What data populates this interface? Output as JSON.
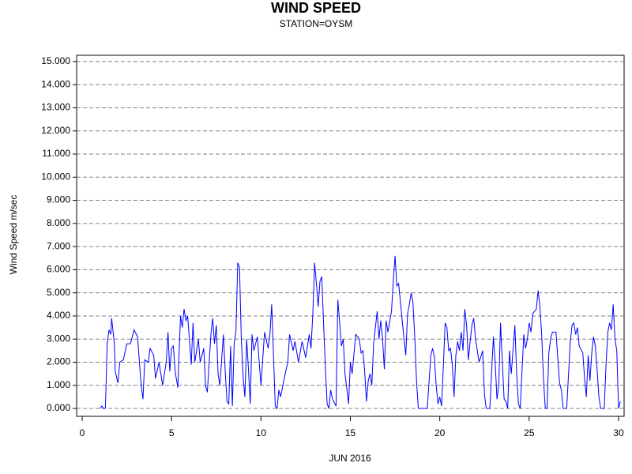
{
  "chart_data": {
    "type": "line",
    "title": "WIND SPEED",
    "subtitle": "STATION=OYSM",
    "x_label": "JUN 2016",
    "y_label": "Wind Speed m/sec",
    "color": "#0000ff",
    "grid": true,
    "xlim": [
      -0.31,
      30.31
    ],
    "ylim": [
      -0.34,
      15.27
    ],
    "xticks": [
      0,
      5,
      10,
      15,
      20,
      25,
      30
    ],
    "yticks": [
      {
        "value": 0,
        "label": "0.000"
      },
      {
        "value": 1,
        "label": "1.000"
      },
      {
        "value": 2,
        "label": "2.000"
      },
      {
        "value": 3,
        "label": "3.000"
      },
      {
        "value": 4,
        "label": "4.000"
      },
      {
        "value": 5,
        "label": "5.000"
      },
      {
        "value": 6,
        "label": "6.000"
      },
      {
        "value": 7,
        "label": "7.000"
      },
      {
        "value": 8,
        "label": "8.000"
      },
      {
        "value": 9,
        "label": "9.000"
      },
      {
        "value": 10,
        "label": "10.000"
      },
      {
        "value": 11,
        "label": "11.000"
      },
      {
        "value": 12,
        "label": "12.000"
      },
      {
        "value": 13,
        "label": "13.000"
      },
      {
        "value": 14,
        "label": "14.000"
      },
      {
        "value": 15,
        "label": "15.000"
      }
    ],
    "x": [
      1.0,
      1.1,
      1.2,
      1.3,
      1.4,
      1.5,
      1.6,
      1.65,
      1.8,
      1.85,
      2.0,
      2.1,
      2.3,
      2.5,
      2.7,
      2.9,
      3.1,
      3.2,
      3.3,
      3.4,
      3.5,
      3.7,
      3.8,
      4.0,
      4.1,
      4.3,
      4.5,
      4.7,
      4.8,
      4.9,
      5.0,
      5.1,
      5.2,
      5.35,
      5.5,
      5.6,
      5.7,
      5.8,
      5.9,
      6.1,
      6.2,
      6.3,
      6.5,
      6.6,
      6.8,
      6.9,
      7.0,
      7.2,
      7.3,
      7.4,
      7.5,
      7.6,
      7.7,
      7.9,
      8.0,
      8.1,
      8.2,
      8.3,
      8.4,
      8.5,
      8.6,
      8.7,
      8.8,
      8.9,
      9.0,
      9.1,
      9.2,
      9.3,
      9.4,
      9.5,
      9.6,
      9.8,
      9.9,
      10.0,
      10.2,
      10.4,
      10.5,
      10.6,
      10.7,
      10.8,
      10.9,
      11.0,
      11.1,
      11.3,
      11.5,
      11.6,
      11.8,
      11.9,
      12.1,
      12.3,
      12.5,
      12.7,
      12.8,
      12.9,
      13.0,
      13.1,
      13.2,
      13.3,
      13.4,
      13.5,
      13.6,
      13.7,
      13.8,
      13.9,
      14.0,
      14.2,
      14.3,
      14.5,
      14.6,
      14.7,
      14.9,
      15.0,
      15.1,
      15.3,
      15.5,
      15.6,
      15.7,
      15.8,
      15.9,
      16.0,
      16.1,
      16.2,
      16.3,
      16.5,
      16.6,
      16.7,
      16.8,
      16.9,
      17.0,
      17.1,
      17.3,
      17.4,
      17.5,
      17.6,
      17.7,
      17.8,
      17.9,
      18.0,
      18.1,
      18.2,
      18.3,
      18.4,
      18.5,
      18.6,
      18.7,
      18.8,
      19.1,
      19.3,
      19.5,
      19.6,
      19.7,
      19.8,
      19.9,
      20.0,
      20.1,
      20.2,
      20.3,
      20.4,
      20.5,
      20.6,
      20.7,
      20.8,
      20.9,
      21.0,
      21.1,
      21.2,
      21.3,
      21.4,
      21.5,
      21.6,
      21.7,
      21.8,
      21.9,
      22.0,
      22.2,
      22.4,
      22.5,
      22.6,
      22.8,
      22.9,
      23.0,
      23.1,
      23.2,
      23.3,
      23.4,
      23.5,
      23.6,
      23.7,
      23.8,
      23.9,
      24.0,
      24.2,
      24.3,
      24.4,
      24.5,
      24.6,
      24.7,
      24.8,
      24.9,
      25.0,
      25.1,
      25.2,
      25.4,
      25.5,
      25.6,
      25.7,
      25.8,
      25.9,
      26.0,
      26.1,
      26.2,
      26.3,
      26.5,
      26.7,
      26.8,
      26.9,
      27.1,
      27.3,
      27.4,
      27.5,
      27.6,
      27.7,
      27.8,
      28.0,
      28.1,
      28.2,
      28.3,
      28.4,
      28.5,
      28.6,
      28.7,
      28.8,
      28.9,
      29.0,
      29.2,
      29.3,
      29.4,
      29.5,
      29.6,
      29.7,
      29.8,
      29.9,
      30.0,
      30.1
    ],
    "values": [
      0,
      0.1,
      0,
      0,
      2.8,
      3.4,
      3.2,
      3.9,
      2.8,
      1.6,
      1.1,
      2.0,
      2.1,
      2.8,
      2.8,
      3.4,
      3.1,
      2.0,
      1.0,
      0.4,
      2.1,
      2.0,
      2.6,
      2.3,
      1.3,
      2.0,
      1.0,
      2.0,
      3.3,
      1.6,
      2.6,
      2.7,
      1.6,
      0.9,
      4.0,
      3.5,
      4.3,
      3.8,
      4.0,
      1.9,
      3.7,
      2.0,
      3.0,
      2.0,
      2.6,
      1.0,
      0.7,
      3.2,
      3.9,
      2.8,
      3.6,
      1.5,
      1.0,
      3.2,
      1.6,
      0.3,
      0.2,
      2.7,
      0.1,
      2.8,
      3.3,
      6.3,
      6.1,
      3.0,
      1.4,
      0.5,
      3.0,
      1.7,
      0.2,
      3.2,
      2.5,
      3.1,
      2.0,
      1.0,
      3.3,
      2.6,
      3.2,
      4.5,
      2.3,
      0.1,
      0,
      0.8,
      0.5,
      1.3,
      2.0,
      3.2,
      2.5,
      2.9,
      2.0,
      2.9,
      2.2,
      3.2,
      2.6,
      4.1,
      6.3,
      5.4,
      4.4,
      5.5,
      5.7,
      3.7,
      1.8,
      0.2,
      0,
      0.8,
      0.4,
      0.1,
      4.7,
      2.7,
      3.0,
      1.5,
      0.2,
      2.0,
      1.5,
      3.2,
      3.0,
      2.4,
      2.5,
      1.6,
      0.3,
      1.2,
      1.5,
      1.0,
      2.8,
      4.2,
      3.0,
      3.8,
      3.0,
      1.7,
      3.8,
      3.3,
      4.2,
      5.5,
      6.6,
      5.3,
      5.4,
      4.6,
      3.8,
      3.0,
      2.3,
      4.1,
      4.5,
      5.0,
      4.6,
      3.1,
      1.2,
      0,
      0,
      0,
      2.3,
      2.6,
      2.2,
      1.0,
      0.2,
      0.5,
      0.1,
      1.8,
      3.7,
      3.5,
      2.5,
      2.6,
      1.9,
      0.5,
      2.3,
      2.9,
      2.5,
      3.3,
      2.5,
      4.3,
      3.6,
      2.1,
      2.9,
      3.6,
      3.9,
      3.0,
      2.0,
      2.5,
      0.6,
      0,
      0,
      1.6,
      3.1,
      2.0,
      0.4,
      1.0,
      3.7,
      2.0,
      0.4,
      0.3,
      0,
      2.5,
      1.5,
      3.6,
      1.5,
      0.2,
      0,
      1.6,
      3.2,
      2.6,
      3.0,
      3.7,
      3.3,
      4.1,
      4.3,
      5.1,
      4.4,
      3.2,
      1.3,
      0,
      0,
      2.4,
      3.0,
      3.3,
      3.3,
      1.1,
      0.8,
      0,
      0,
      2.9,
      3.6,
      3.7,
      3.2,
      3.5,
      2.7,
      2.4,
      1.3,
      0.5,
      2.3,
      1.2,
      2.4,
      3.1,
      2.7,
      1.7,
      0.5,
      0,
      0,
      1.9,
      3.3,
      3.7,
      3.4,
      4.5,
      3.0,
      2.5,
      0,
      0.3
    ]
  }
}
